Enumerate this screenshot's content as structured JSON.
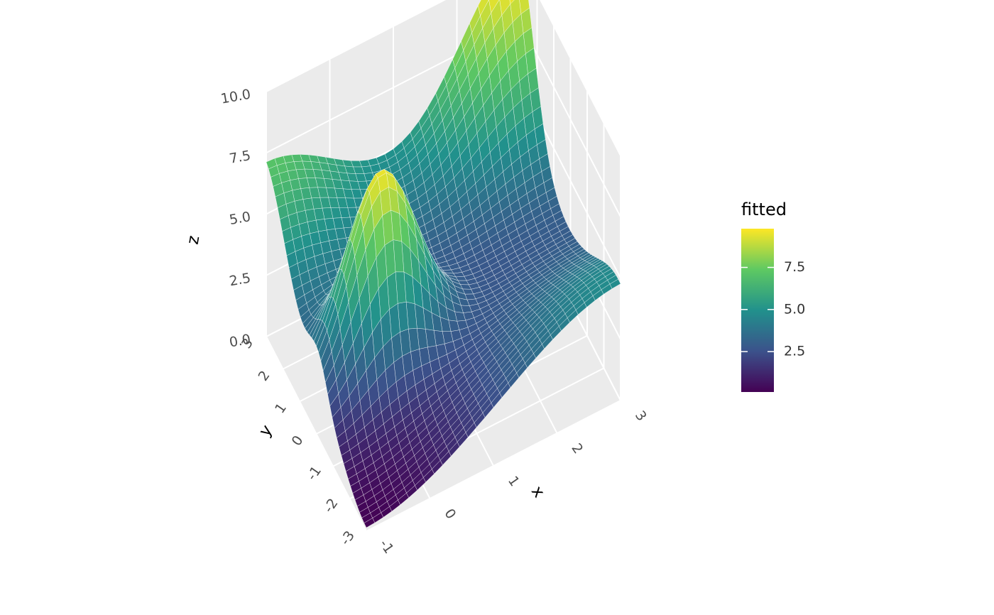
{
  "chart_data": {
    "type": "surface3d",
    "title": "",
    "x": {
      "label": "x",
      "range": [
        -1,
        3
      ],
      "ticks": [
        "-1",
        "0",
        "1",
        "2",
        "3"
      ]
    },
    "y": {
      "label": "y",
      "range": [
        -3,
        3
      ],
      "ticks": [
        "-3",
        "-2",
        "-1",
        "0",
        "1",
        "2",
        "3"
      ]
    },
    "z": {
      "label": "z",
      "range": [
        0,
        10
      ],
      "ticks": [
        "0.0",
        "2.5",
        "5.0",
        "7.5",
        "10.0"
      ]
    },
    "legend": {
      "title": "fitted",
      "labels": [
        "2.5",
        "5.0",
        "7.5"
      ],
      "placement": "right",
      "palette": [
        "#440154",
        "#3b528b",
        "#21918c",
        "#5ec962",
        "#fde725"
      ],
      "range": [
        0.1,
        9.8
      ]
    },
    "grid": true,
    "panel_color": "#ebebeb",
    "surface_samples": {
      "description_of_shape": "corner peaks",
      "points": [
        {
          "x": -1,
          "y": 3,
          "z": 6.7
        },
        {
          "x": -1,
          "y": -3,
          "z": 0.1
        },
        {
          "x": 0,
          "y": 0,
          "z": 2.0
        },
        {
          "x": 0.4,
          "y": 0.3,
          "z": 9.8
        },
        {
          "x": 3,
          "y": 3,
          "z": 9.8
        },
        {
          "x": 3,
          "y": -3,
          "z": 4.5
        },
        {
          "x": 1.5,
          "y": 1.5,
          "z": 3.5
        }
      ]
    }
  }
}
